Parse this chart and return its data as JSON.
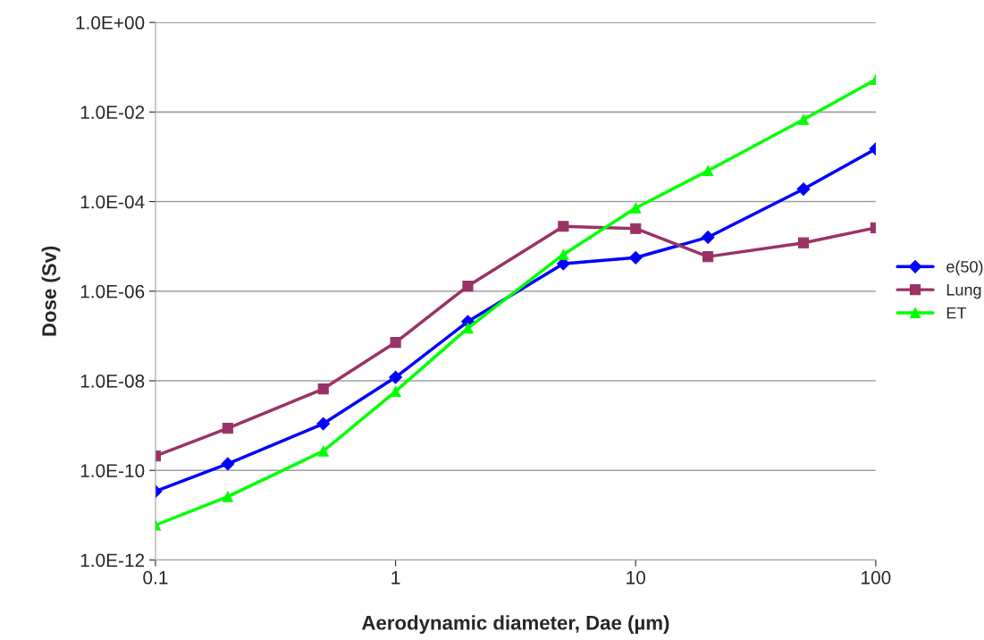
{
  "chart_data": {
    "type": "line",
    "xlabel": "Aerodynamic diameter, Dae (µm)",
    "ylabel": "Dose (Sv)",
    "x": [
      0.1,
      0.2,
      0.5,
      1,
      2,
      5,
      10,
      20,
      50,
      100
    ],
    "series": [
      {
        "name": "e(50)",
        "color": "#0000ff",
        "marker": "diamond",
        "values": [
          3.4e-11,
          1.4e-10,
          1.1e-09,
          1.2e-08,
          2.1e-07,
          4.1e-06,
          5.6e-06,
          1.6e-05,
          0.00019,
          0.0015
        ]
      },
      {
        "name": "Lung",
        "color": "#993366",
        "marker": "square",
        "values": [
          2.1e-10,
          8.7e-10,
          6.6e-09,
          7.2e-08,
          1.3e-06,
          2.8e-05,
          2.5e-05,
          5.9e-06,
          1.2e-05,
          2.6e-05
        ]
      },
      {
        "name": "ET",
        "color": "#00ff00",
        "marker": "triangle",
        "values": [
          6e-12,
          2.6e-11,
          2.7e-10,
          5.8e-09,
          1.5e-07,
          6.6e-06,
          7.2e-05,
          0.00049,
          0.0068,
          0.053
        ]
      }
    ],
    "log": "xy",
    "xlim": [
      0.1,
      100
    ],
    "xticks": [
      {
        "value": 0.1,
        "label": "0.1"
      },
      1,
      10,
      100
    ],
    "ylim": [
      1e-12,
      1
    ],
    "yticks": [
      {
        "value": 1e-12,
        "label": "1.0E-12"
      },
      {
        "value": 1e-10,
        "label": "1.0E-10"
      },
      {
        "value": 1e-08,
        "label": "1.0E-08"
      },
      {
        "value": 1e-06,
        "label": "1.0E-06"
      },
      {
        "value": 0.0001,
        "label": "1.0E-04"
      },
      {
        "value": 0.01,
        "label": "1.0E-02"
      },
      {
        "value": 1,
        "label": "1.0E+00"
      }
    ],
    "grid": "y",
    "legend": "right",
    "line_style": "solid"
  }
}
